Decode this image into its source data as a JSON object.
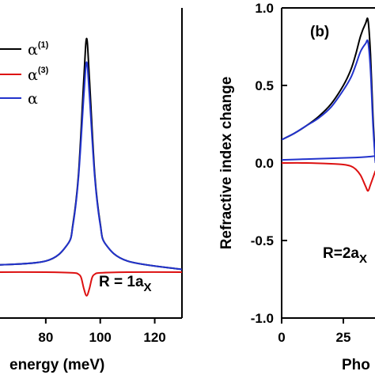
{
  "chart_data": [
    {
      "panel": "a",
      "type": "line",
      "xlabel": "energy (meV)",
      "ylabel": "",
      "xlim": [
        60,
        130
      ],
      "ylim": [
        -0.33,
        1.9
      ],
      "xticks": [
        60,
        80,
        100,
        120
      ],
      "xtick_labels": [
        "",
        "80",
        "100",
        "120"
      ],
      "annotation": {
        "main": "R = 1a",
        "sub": "X"
      },
      "legend": {
        "placement": "top-left",
        "entries": [
          {
            "main": "α",
            "sup": "(1)"
          },
          {
            "main": "α",
            "sup": "(3)"
          },
          {
            "main": "α",
            "sup": ""
          }
        ]
      },
      "series": [
        {
          "color": "#000000",
          "x": [
            60,
            80,
            88,
            90,
            92,
            94,
            95,
            96,
            98,
            100,
            102,
            110,
            130
          ],
          "y": [
            0.05,
            0.08,
            0.2,
            0.35,
            0.7,
            1.4,
            1.68,
            1.4,
            0.7,
            0.35,
            0.2,
            0.08,
            0.02
          ]
        },
        {
          "color": "#dd1111",
          "x": [
            60,
            80,
            90,
            92,
            93,
            94,
            95,
            96,
            97,
            98,
            100,
            110,
            130
          ],
          "y": [
            0,
            0,
            -0.005,
            -0.015,
            -0.04,
            -0.12,
            -0.17,
            -0.12,
            -0.04,
            -0.015,
            -0.005,
            0,
            0
          ]
        },
        {
          "color": "#2233cc",
          "x": [
            60,
            80,
            88,
            90,
            92,
            94,
            95,
            96,
            98,
            100,
            102,
            110,
            130
          ],
          "y": [
            0.05,
            0.08,
            0.2,
            0.34,
            0.68,
            1.28,
            1.51,
            1.28,
            0.68,
            0.34,
            0.2,
            0.08,
            0.02
          ]
        }
      ]
    },
    {
      "panel": "b",
      "type": "line",
      "xlabel": "Pho",
      "ylabel": "Refractive index change",
      "xlim": [
        0,
        62
      ],
      "ylim": [
        -1.0,
        1.0
      ],
      "xticks": [
        0,
        25
      ],
      "xtick_labels": [
        "0",
        "25"
      ],
      "yticks": [
        -1.0,
        -0.5,
        0.0,
        0.5,
        1.0
      ],
      "ytick_labels": [
        "-1.0",
        "-0.5",
        "0.0",
        "0.5",
        "1.0"
      ],
      "panel_label": "(b)",
      "annotation": {
        "main": "R=2a",
        "sub": "X"
      },
      "series": [
        {
          "color": "#000000",
          "x": [
            0,
            5,
            10,
            15,
            20,
            25,
            28,
            30,
            32,
            34,
            35,
            36,
            37,
            38
          ],
          "y": [
            0.15,
            0.19,
            0.24,
            0.3,
            0.38,
            0.5,
            0.6,
            0.7,
            0.82,
            0.9,
            0.92,
            0.7,
            0.3,
            0.0
          ]
        },
        {
          "color": "#2233cc",
          "x": [
            0,
            5,
            10,
            15,
            20,
            25,
            28,
            30,
            32,
            34,
            35,
            36,
            37,
            38
          ],
          "y": [
            0.15,
            0.19,
            0.24,
            0.29,
            0.36,
            0.47,
            0.55,
            0.63,
            0.72,
            0.77,
            0.78,
            0.6,
            0.25,
            0.0
          ]
        },
        {
          "color": "#2233cc",
          "x": [
            0,
            10,
            20,
            30,
            35,
            38
          ],
          "y": [
            0.02,
            0.025,
            0.03,
            0.035,
            0.04,
            0.045
          ]
        },
        {
          "color": "#dd1111",
          "x": [
            0,
            10,
            20,
            25,
            28,
            30,
            32,
            34,
            35,
            36,
            38
          ],
          "y": [
            0.0,
            0.0,
            -0.005,
            -0.01,
            -0.02,
            -0.04,
            -0.08,
            -0.15,
            -0.18,
            -0.14,
            -0.05
          ]
        }
      ]
    }
  ]
}
